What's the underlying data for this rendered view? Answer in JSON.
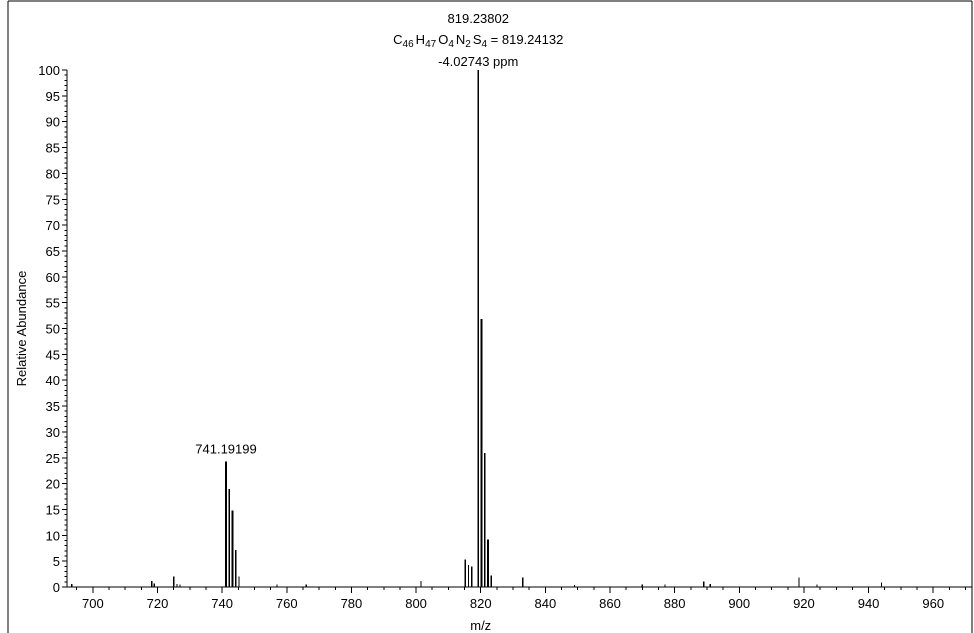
{
  "chart_data": {
    "type": "bar",
    "xlabel": "m/z",
    "ylabel": "Relative Abundance",
    "xlim": [
      692,
      972
    ],
    "ylim": [
      0,
      100
    ],
    "xticks": [
      700,
      720,
      740,
      760,
      780,
      800,
      820,
      840,
      860,
      880,
      900,
      920,
      940,
      960
    ],
    "yticks": [
      0,
      5,
      10,
      15,
      20,
      25,
      30,
      35,
      40,
      45,
      50,
      55,
      60,
      65,
      70,
      75,
      80,
      85,
      90,
      95,
      100
    ],
    "peaks": [
      {
        "x": 693.5,
        "y": 0.6
      },
      {
        "x": 718.2,
        "y": 1.2
      },
      {
        "x": 719.0,
        "y": 0.7
      },
      {
        "x": 725.0,
        "y": 2.0
      },
      {
        "x": 726.0,
        "y": 0.6
      },
      {
        "x": 727.0,
        "y": 0.5
      },
      {
        "x": 741.19199,
        "y": 24.3
      },
      {
        "x": 742.19,
        "y": 19.0
      },
      {
        "x": 743.19,
        "y": 14.8
      },
      {
        "x": 744.19,
        "y": 7.2
      },
      {
        "x": 745.19,
        "y": 2.0
      },
      {
        "x": 757.0,
        "y": 0.5
      },
      {
        "x": 766.0,
        "y": 0.5
      },
      {
        "x": 801.5,
        "y": 1.2
      },
      {
        "x": 815.24,
        "y": 5.3
      },
      {
        "x": 816.24,
        "y": 4.3
      },
      {
        "x": 817.24,
        "y": 4.0
      },
      {
        "x": 819.23802,
        "y": 100
      },
      {
        "x": 820.24,
        "y": 51.8
      },
      {
        "x": 821.24,
        "y": 25.9
      },
      {
        "x": 822.24,
        "y": 9.2
      },
      {
        "x": 823.24,
        "y": 2.2
      },
      {
        "x": 833.0,
        "y": 1.8
      },
      {
        "x": 849.0,
        "y": 0.4
      },
      {
        "x": 870.0,
        "y": 0.5
      },
      {
        "x": 877.0,
        "y": 0.5
      },
      {
        "x": 889.0,
        "y": 1.1
      },
      {
        "x": 891.0,
        "y": 0.6
      },
      {
        "x": 918.5,
        "y": 1.8
      },
      {
        "x": 924.0,
        "y": 0.5
      },
      {
        "x": 944.0,
        "y": 0.9
      }
    ],
    "annotations": {
      "main_peak_mz": "819.23802",
      "formula_prefix": "C",
      "formula_c": "46",
      "formula_h_label": "H",
      "formula_h": "47",
      "formula_o_label": "O",
      "formula_o": "4",
      "formula_n_label": "N",
      "formula_n": "2",
      "formula_s_label": "S",
      "formula_s": "4",
      "formula_value": " = 819.24132",
      "ppm": "-4.02743 ppm",
      "secondary_peak_mz": "741.19199"
    },
    "grid": false,
    "legend": "none"
  }
}
